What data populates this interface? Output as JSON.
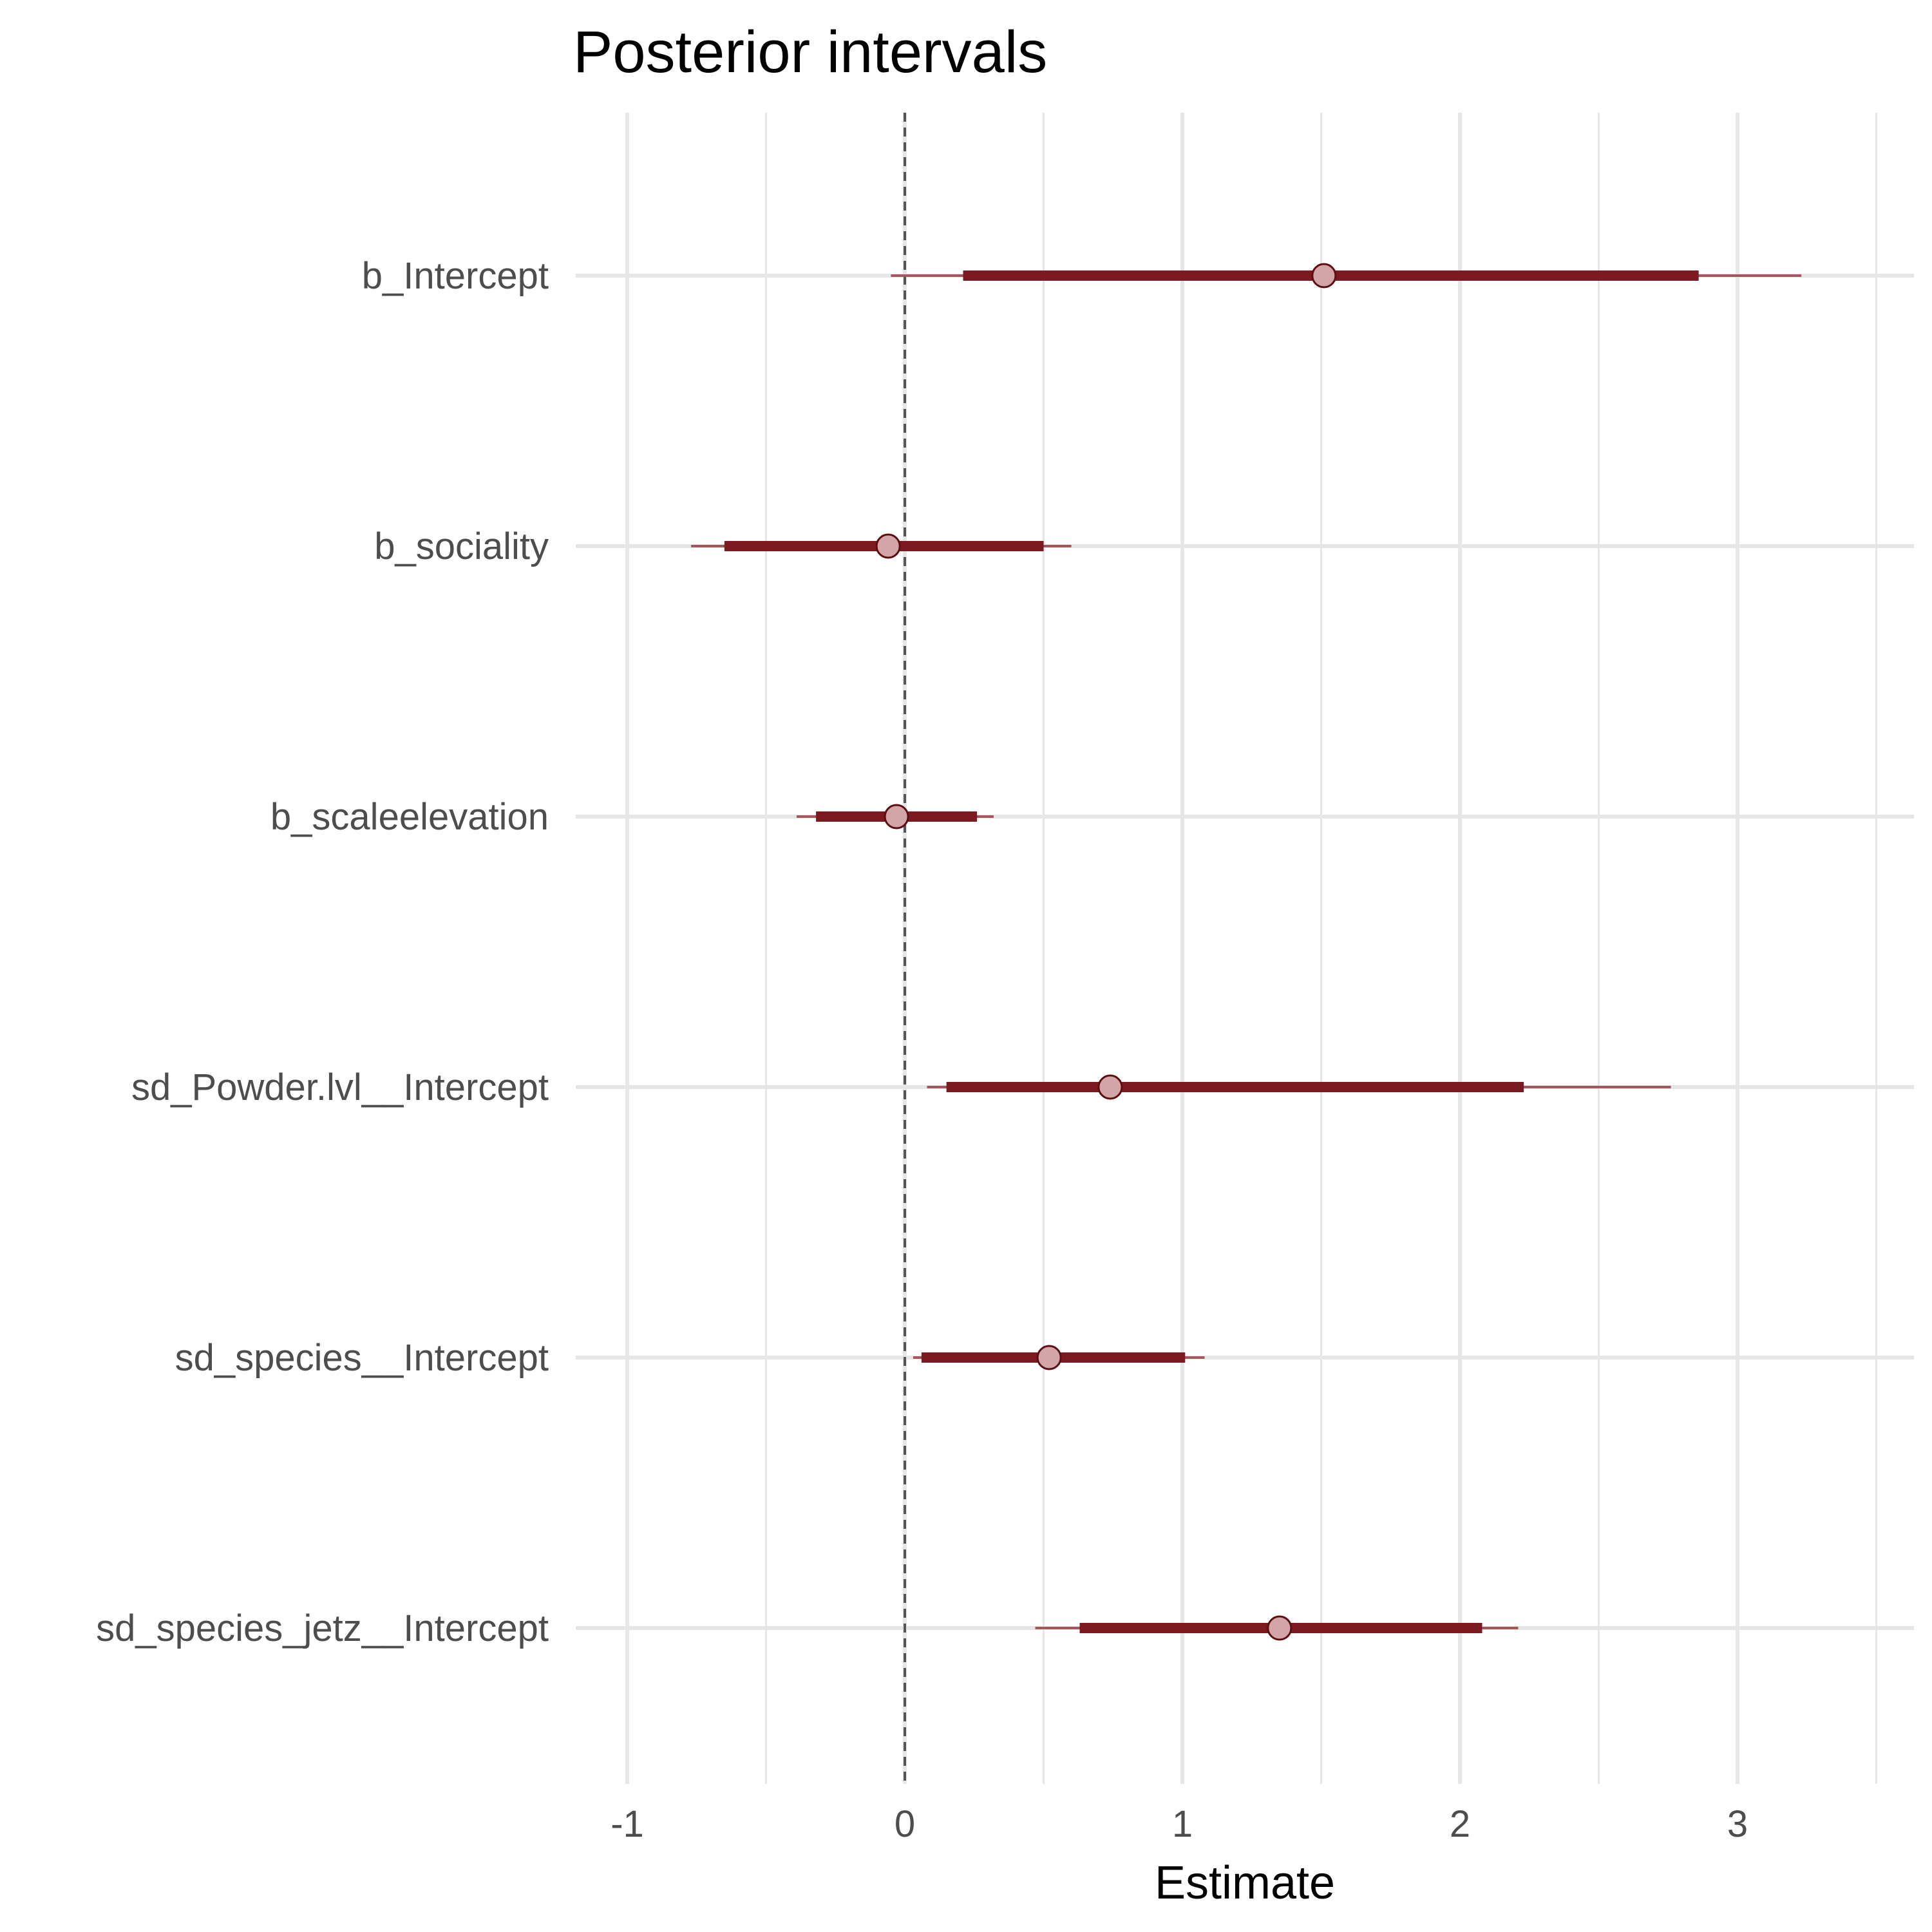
{
  "chart_data": {
    "type": "interval",
    "title": "Posterior intervals",
    "xlabel": "Estimate",
    "ylabel": "",
    "xlim": [
      -1.1,
      3.65
    ],
    "xticks": [
      "-1",
      "0",
      "1",
      "2",
      "3"
    ],
    "grid": true,
    "reference_line": 0,
    "colors": {
      "inner": "#7b1a20",
      "outer": "#a3575c",
      "point_fill": "#d4a5a8",
      "point_stroke": "#5c0e13",
      "grid": "#e6e6e6",
      "reference": "#555555"
    },
    "parameters": [
      {
        "name": "b_Intercept",
        "median": 1.51,
        "inner": [
          0.21,
          2.86
        ],
        "outer": [
          -0.05,
          3.23
        ]
      },
      {
        "name": "b_sociality",
        "median": -0.06,
        "inner": [
          -0.65,
          0.5
        ],
        "outer": [
          -0.77,
          0.6
        ]
      },
      {
        "name": "b_scaleelevation",
        "median": -0.03,
        "inner": [
          -0.32,
          0.26
        ],
        "outer": [
          -0.39,
          0.32
        ]
      },
      {
        "name": "sd_Powder.lvl__Intercept",
        "median": 0.74,
        "inner": [
          0.15,
          2.23
        ],
        "outer": [
          0.08,
          2.76
        ]
      },
      {
        "name": "sd_species__Intercept",
        "median": 0.52,
        "inner": [
          0.06,
          1.01
        ],
        "outer": [
          0.03,
          1.08
        ]
      },
      {
        "name": "sd_species_jetz__Intercept",
        "median": 1.35,
        "inner": [
          0.63,
          2.08
        ],
        "outer": [
          0.47,
          2.21
        ]
      }
    ]
  }
}
